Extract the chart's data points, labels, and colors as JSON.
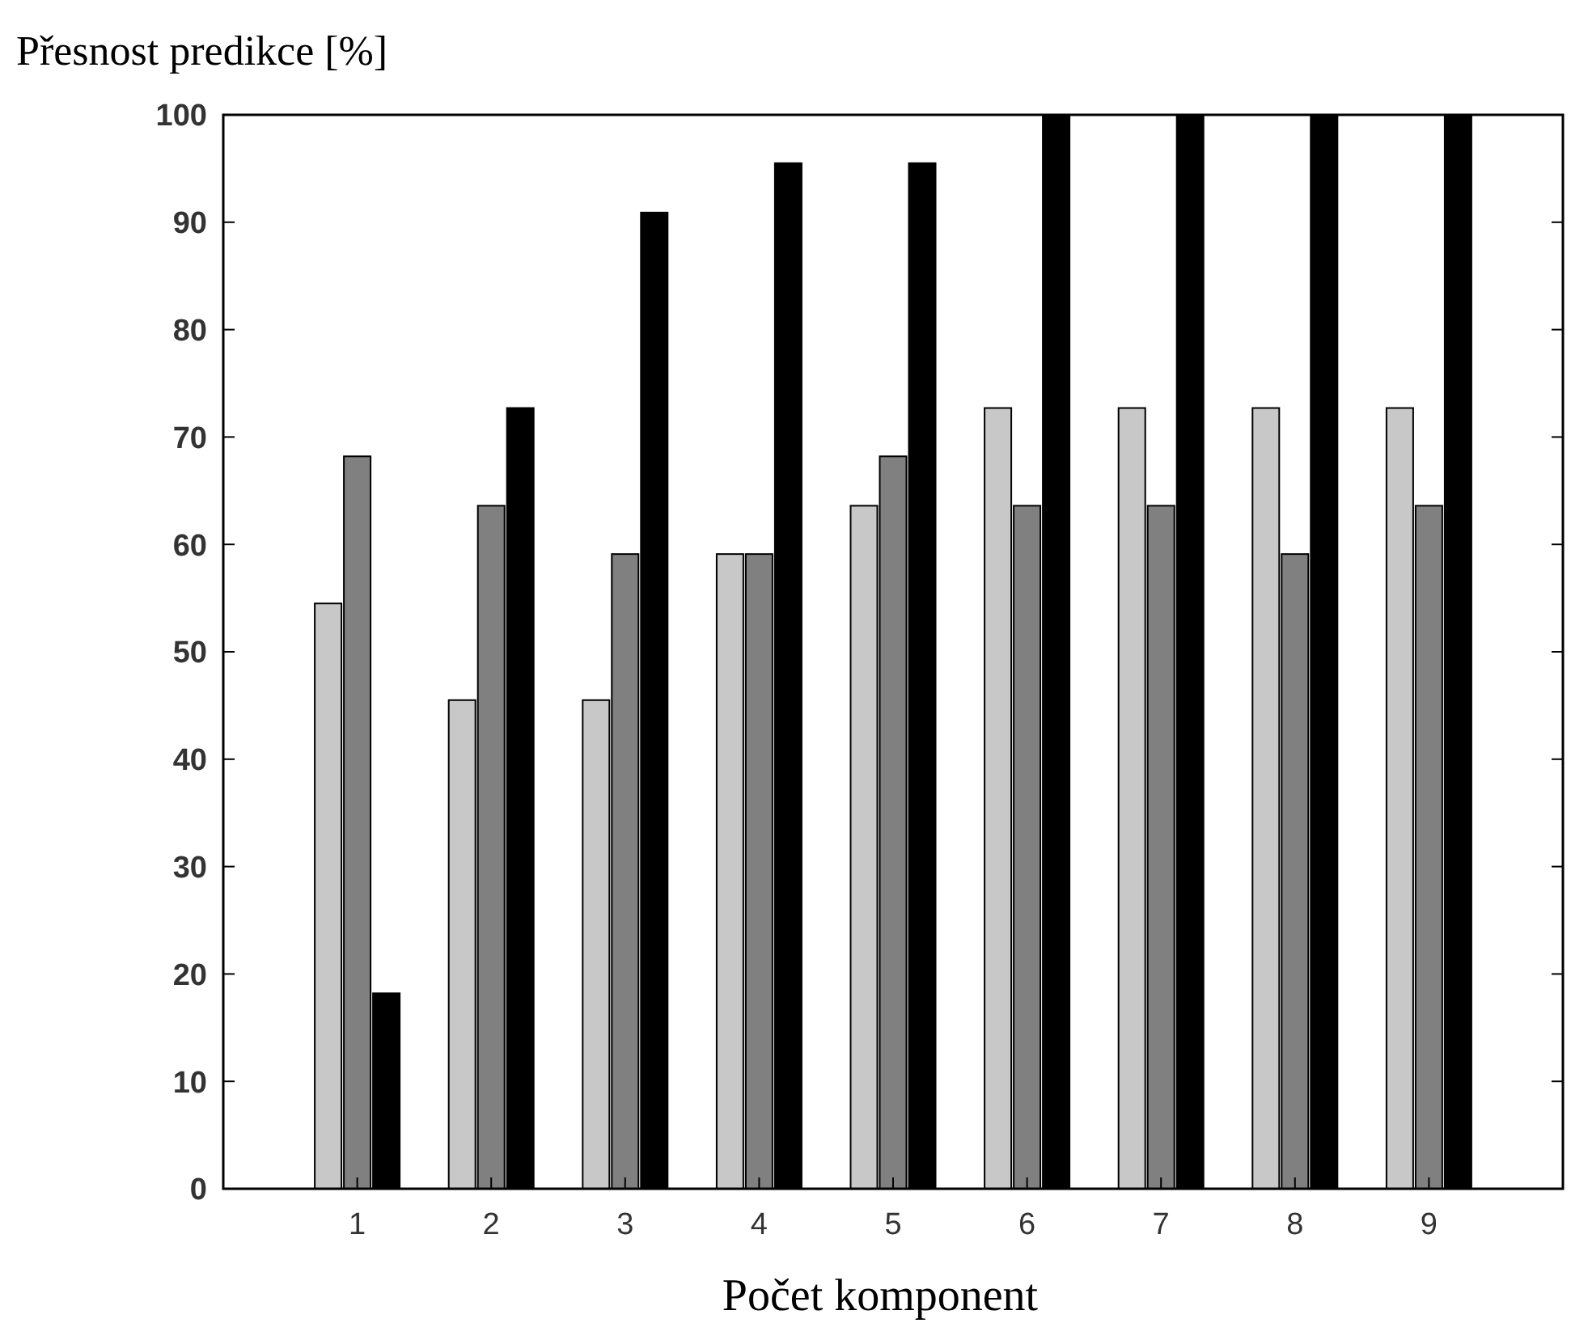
{
  "chart_data": {
    "type": "bar",
    "xlabel": "Počet komponent",
    "ylabel": "Přesnost predikce [%]",
    "categories": [
      "1",
      "2",
      "3",
      "4",
      "5",
      "6",
      "7",
      "8",
      "9"
    ],
    "series": [
      {
        "color": "#c8c8c8",
        "values": [
          54.5,
          45.5,
          45.5,
          59.1,
          63.6,
          72.7,
          72.7,
          72.7,
          72.7
        ]
      },
      {
        "color": "#808080",
        "values": [
          68.2,
          63.6,
          59.1,
          59.1,
          68.2,
          63.6,
          63.6,
          59.1,
          63.6
        ]
      },
      {
        "color": "#000000",
        "values": [
          18.2,
          72.7,
          90.9,
          95.5,
          95.5,
          100,
          100,
          100,
          100
        ]
      }
    ],
    "ylim": [
      0,
      100
    ],
    "yticks": [
      0,
      10,
      20,
      30,
      40,
      50,
      60,
      70,
      80,
      90,
      100
    ],
    "grid": false
  }
}
